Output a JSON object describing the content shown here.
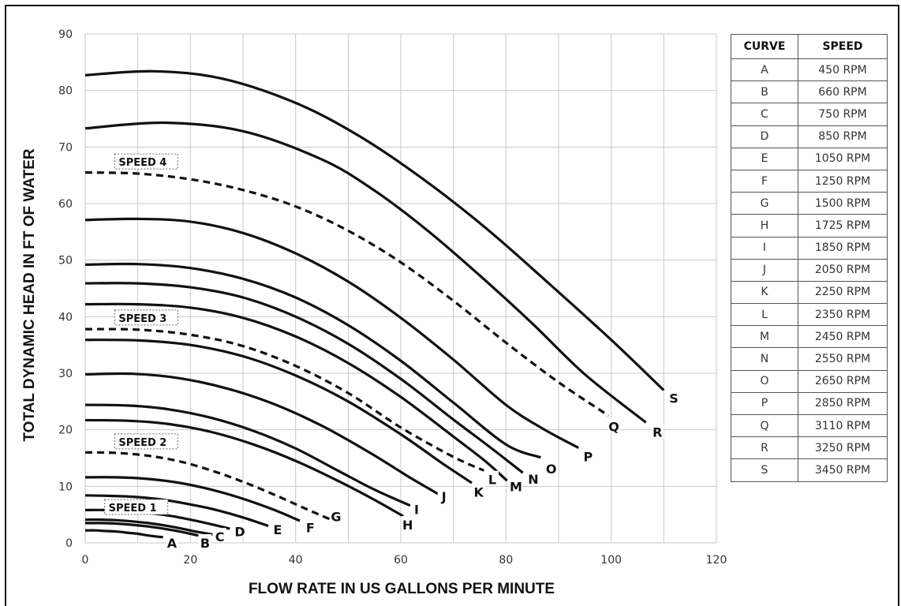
{
  "chart_data": {
    "type": "line",
    "title": "",
    "xlabel": "FLOW RATE IN US GALLONS PER MINUTE",
    "ylabel": "TOTAL DYNAMIC HEAD IN FT OF WATER",
    "xlim": [
      0,
      120
    ],
    "ylim": [
      0,
      90
    ],
    "xticks": [
      0,
      20,
      40,
      60,
      80,
      100,
      120
    ],
    "yticks": [
      0,
      10,
      20,
      30,
      40,
      50,
      60,
      70,
      80,
      90
    ],
    "grid": true,
    "series": [
      {
        "name": "A",
        "style": "solid",
        "x": [
          0,
          2,
          4,
          6,
          8,
          10,
          12,
          14.8
        ],
        "y": [
          2.2,
          2.2,
          2.1,
          2.0,
          1.8,
          1.6,
          1.3,
          1.0
        ]
      },
      {
        "name": "B",
        "style": "solid",
        "x": [
          0,
          3,
          6,
          9,
          12,
          15,
          18,
          21.5
        ],
        "y": [
          3.5,
          3.5,
          3.4,
          3.2,
          2.9,
          2.5,
          2.0,
          1.3
        ]
      },
      {
        "name": "C",
        "style": "solid",
        "x": [
          0,
          3,
          6,
          9,
          12,
          15,
          18,
          21,
          24.2
        ],
        "y": [
          4.1,
          4.1,
          4.0,
          3.8,
          3.5,
          3.1,
          2.6,
          2.0,
          1.5
        ]
      },
      {
        "name": "D",
        "style": "solid",
        "x": [
          0,
          4,
          8,
          12,
          16,
          20,
          24,
          27.5
        ],
        "y": [
          5.8,
          5.8,
          5.6,
          5.3,
          4.8,
          4.1,
          3.3,
          2.5
        ]
      },
      {
        "name": "E",
        "style": "solid",
        "x": [
          0,
          5,
          10,
          15,
          20,
          25,
          30,
          34.8
        ],
        "y": [
          8.4,
          8.3,
          8.1,
          7.6,
          6.8,
          5.8,
          4.5,
          3.0
        ]
      },
      {
        "name": "F",
        "style": "solid",
        "x": [
          0,
          6,
          12,
          18,
          24,
          30,
          36,
          40.8
        ],
        "y": [
          11.6,
          11.6,
          11.3,
          10.6,
          9.4,
          7.8,
          5.8,
          3.9
        ]
      },
      {
        "name": "H",
        "style": "solid",
        "x": [
          0,
          8,
          16,
          24,
          32,
          40,
          48,
          55,
          60.5
        ],
        "y": [
          21.7,
          21.6,
          21.0,
          19.6,
          17.4,
          14.5,
          11.0,
          7.6,
          4.7
        ]
      },
      {
        "name": "I",
        "style": "solid",
        "x": [
          0,
          8,
          16,
          24,
          32,
          40,
          48,
          55,
          61.8
        ],
        "y": [
          24.4,
          24.3,
          23.6,
          22.1,
          19.8,
          16.7,
          12.8,
          9.4,
          6.6
        ]
      },
      {
        "name": "J",
        "style": "solid",
        "x": [
          0,
          9,
          18,
          27,
          36,
          45,
          54,
          62,
          67.2
        ],
        "y": [
          29.8,
          29.9,
          29.1,
          27.3,
          24.5,
          20.7,
          16.0,
          11.4,
          8.6
        ]
      },
      {
        "name": "K",
        "style": "solid",
        "x": [
          0,
          10,
          20,
          30,
          40,
          50,
          60,
          68,
          73.5
        ],
        "y": [
          35.9,
          35.8,
          35.0,
          33.0,
          29.6,
          25.0,
          19.2,
          14.0,
          10.6
        ]
      },
      {
        "name": "M",
        "style": "solid",
        "x": [
          0,
          10,
          20,
          30,
          40,
          50,
          60,
          70,
          76,
          80.2
        ],
        "y": [
          42.2,
          42.2,
          41.6,
          39.8,
          36.5,
          31.8,
          25.8,
          18.8,
          14.5,
          11.0
        ]
      },
      {
        "name": "N",
        "style": "solid",
        "x": [
          0,
          10,
          20,
          30,
          40,
          50,
          60,
          70,
          77,
          83.2
        ],
        "y": [
          45.9,
          45.9,
          45.2,
          43.4,
          40.0,
          35.2,
          29.0,
          21.8,
          16.9,
          12.4
        ]
      },
      {
        "name": "O",
        "style": "solid",
        "x": [
          0,
          10,
          20,
          30,
          40,
          50,
          60,
          70,
          80,
          86.6
        ],
        "y": [
          49.2,
          49.3,
          48.6,
          46.7,
          43.4,
          38.5,
          32.2,
          24.8,
          17.4,
          15.1
        ]
      },
      {
        "name": "P",
        "style": "solid",
        "x": [
          0,
          10,
          20,
          30,
          40,
          50,
          60,
          70,
          80,
          87,
          93.8
        ],
        "y": [
          57.1,
          57.3,
          56.8,
          54.8,
          51.2,
          46.2,
          39.8,
          32.4,
          24.4,
          20.2,
          16.8
        ]
      },
      {
        "name": "R",
        "style": "solid",
        "x": [
          0,
          15,
          30,
          45,
          55,
          65,
          75,
          85,
          95,
          106.6
        ],
        "y": [
          73.3,
          74.3,
          72.8,
          67.8,
          62.3,
          55.3,
          47.3,
          38.8,
          29.8,
          21.3
        ]
      },
      {
        "name": "S",
        "style": "solid",
        "x": [
          0,
          13,
          26,
          40,
          52,
          64,
          76,
          88,
          100,
          110
        ],
        "y": [
          82.7,
          83.4,
          82.1,
          77.8,
          72.0,
          64.5,
          55.8,
          46.0,
          35.9,
          27.0
        ]
      },
      {
        "name": "G",
        "style": "dashed",
        "x": [
          0,
          6,
          12,
          18,
          24,
          30,
          36,
          42,
          46.5
        ],
        "y": [
          16.0,
          15.9,
          15.4,
          14.4,
          12.8,
          10.8,
          8.5,
          6.0,
          4.2
        ]
      },
      {
        "name": "L",
        "style": "dashed",
        "x": [
          0,
          10,
          20,
          30,
          40,
          50,
          60,
          70,
          75.8
        ],
        "y": [
          37.8,
          37.7,
          36.8,
          34.8,
          31.3,
          26.5,
          20.4,
          15.2,
          12.8
        ]
      },
      {
        "name": "Q",
        "style": "dashed",
        "x": [
          0,
          10,
          20,
          30,
          40,
          50,
          60,
          70,
          80,
          90,
          99.5
        ],
        "y": [
          65.5,
          65.3,
          64.3,
          62.4,
          59.5,
          55.2,
          49.6,
          42.8,
          35.4,
          28.4,
          22.5
        ]
      }
    ],
    "curve_labels": [
      {
        "text": "A",
        "x": 16.5,
        "y": 0
      },
      {
        "text": "B",
        "x": 22.8,
        "y": 0
      },
      {
        "text": "C",
        "x": 25.6,
        "y": 1.1
      },
      {
        "text": "D",
        "x": 29.4,
        "y": 2.0
      },
      {
        "text": "E",
        "x": 36.6,
        "y": 2.4
      },
      {
        "text": "F",
        "x": 42.8,
        "y": 2.7
      },
      {
        "text": "G",
        "x": 47.7,
        "y": 4.7
      },
      {
        "text": "H",
        "x": 61.3,
        "y": 3.2
      },
      {
        "text": "I",
        "x": 63.0,
        "y": 5.9
      },
      {
        "text": "J",
        "x": 68.2,
        "y": 8.2
      },
      {
        "text": "K",
        "x": 74.8,
        "y": 9.0
      },
      {
        "text": "L",
        "x": 77.4,
        "y": 11.2
      },
      {
        "text": "M",
        "x": 81.9,
        "y": 10.0
      },
      {
        "text": "N",
        "x": 85.2,
        "y": 11.3
      },
      {
        "text": "O",
        "x": 88.6,
        "y": 13.1
      },
      {
        "text": "P",
        "x": 95.6,
        "y": 15.3
      },
      {
        "text": "Q",
        "x": 100.5,
        "y": 20.6
      },
      {
        "text": "R",
        "x": 108.8,
        "y": 19.6
      },
      {
        "text": "S",
        "x": 111.9,
        "y": 25.6
      }
    ],
    "speed_labels": [
      {
        "text": "SPEED 1",
        "x": 4.0,
        "y": 6.0
      },
      {
        "text": "SPEED 2",
        "x": 5.9,
        "y": 17.6
      },
      {
        "text": "SPEED 3",
        "x": 5.9,
        "y": 39.5
      },
      {
        "text": "SPEED 4",
        "x": 5.9,
        "y": 67.1
      }
    ]
  },
  "table": {
    "headers": [
      "CURVE",
      "SPEED"
    ],
    "rows": [
      [
        "A",
        "450 RPM"
      ],
      [
        "B",
        "660 RPM"
      ],
      [
        "C",
        "750 RPM"
      ],
      [
        "D",
        "850 RPM"
      ],
      [
        "E",
        "1050 RPM"
      ],
      [
        "F",
        "1250 RPM"
      ],
      [
        "G",
        "1500 RPM"
      ],
      [
        "H",
        "1725 RPM"
      ],
      [
        "I",
        "1850 RPM"
      ],
      [
        "J",
        "2050 RPM"
      ],
      [
        "K",
        "2250 RPM"
      ],
      [
        "L",
        "2350 RPM"
      ],
      [
        "M",
        "2450 RPM"
      ],
      [
        "N",
        "2550 RPM"
      ],
      [
        "O",
        "2650 RPM"
      ],
      [
        "P",
        "2850 RPM"
      ],
      [
        "Q",
        "3110 RPM"
      ],
      [
        "R",
        "3250 RPM"
      ],
      [
        "S",
        "3450 RPM"
      ]
    ]
  }
}
